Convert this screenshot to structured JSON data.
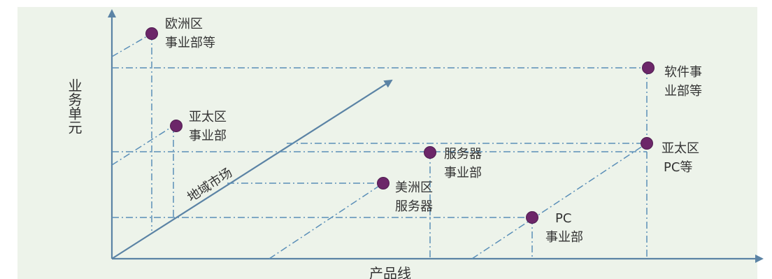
{
  "diagram": {
    "y_axis_label": "业务单元",
    "x_axis_label": "产品线",
    "diagonal_label": "地域市场",
    "nodes": [
      {
        "id": "eu",
        "lines": [
          "欧洲区",
          "事业部等"
        ]
      },
      {
        "id": "ap",
        "lines": [
          "亚太区",
          "事业部"
        ]
      },
      {
        "id": "software",
        "lines": [
          "软件事",
          "业部等"
        ]
      },
      {
        "id": "server",
        "lines": [
          "服务器",
          "事业部"
        ]
      },
      {
        "id": "america",
        "lines": [
          "美洲区",
          "服务器"
        ]
      },
      {
        "id": "ap_pc",
        "lines": [
          "亚太区",
          "PC等"
        ]
      },
      {
        "id": "pc",
        "lines": [
          "PC",
          "事业部"
        ]
      }
    ],
    "colors": {
      "panel_bg": "#edf3ea",
      "axis": "#5b83a5",
      "guides": "#5b8fb8",
      "nodes": "#6c2669",
      "text": "#333333"
    }
  }
}
